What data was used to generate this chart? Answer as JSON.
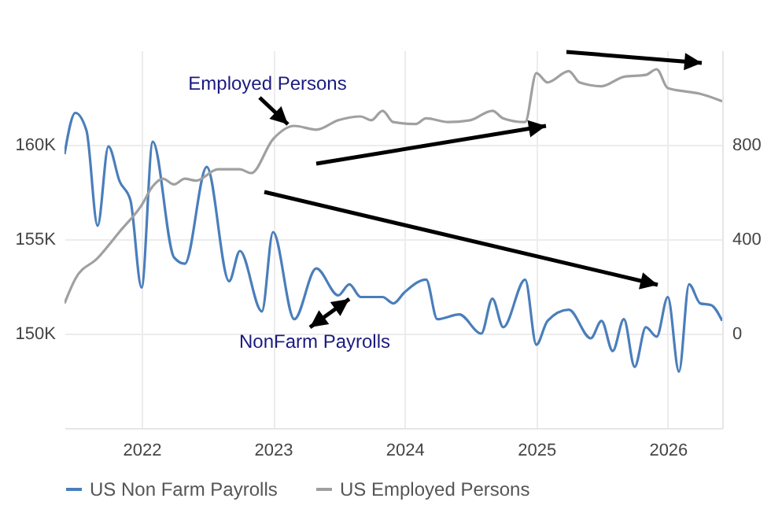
{
  "chart_data": {
    "type": "line",
    "xlim": [
      "2021-06",
      "2026-06"
    ],
    "xticks": [
      "2022",
      "2023",
      "2024",
      "2025",
      "2026"
    ],
    "ylim": [
      145000,
      165000
    ],
    "yticks": [
      {
        "value": 150000,
        "label": "150K"
      },
      {
        "value": 155000,
        "label": "155K"
      },
      {
        "value": 160000,
        "label": "160K"
      }
    ],
    "y2lim": [
      -400,
      1200
    ],
    "y2ticks": [
      0,
      400,
      800
    ],
    "grid": true,
    "legend": "bottom",
    "annotations": [
      "Employed Persons",
      "NonFarm Payrolls"
    ],
    "series": [
      {
        "name": "US Non Farm Payrolls",
        "color": "#4a7ebb",
        "axis": "y2",
        "x": [
          "2021-06",
          "2021-07",
          "2021-08",
          "2021-09",
          "2021-10",
          "2021-11",
          "2021-12",
          "2022-01",
          "2022-02",
          "2022-04",
          "2022-05",
          "2022-07",
          "2022-09",
          "2022-10",
          "2022-12",
          "2023-01",
          "2023-03",
          "2023-05",
          "2023-07",
          "2023-08",
          "2023-09",
          "2023-11",
          "2023-12",
          "2024-01",
          "2024-03",
          "2024-04",
          "2024-06",
          "2024-08",
          "2024-09",
          "2024-10",
          "2024-12",
          "2025-01",
          "2025-02",
          "2025-04",
          "2025-06",
          "2025-07",
          "2025-08",
          "2025-09",
          "2025-10",
          "2025-11",
          "2025-12",
          "2026-01",
          "2026-02",
          "2026-03",
          "2026-04",
          "2026-05",
          "2026-06"
        ],
        "values": [
          760,
          935,
          860,
          457,
          793,
          645,
          565,
          195,
          813,
          323,
          296,
          706,
          222,
          350,
          94,
          430,
          61,
          276,
          162,
          209,
          155,
          155,
          128,
          175,
          229,
          61,
          81,
          0,
          148,
          27,
          229,
          -47,
          54,
          101,
          -20,
          54,
          -74,
          61,
          -141,
          27,
          -13,
          155,
          -161,
          209,
          128,
          121,
          54
        ]
      },
      {
        "name": "US Employed Persons",
        "color": "#a0a0a0",
        "x": [
          "2021-06",
          "2021-07",
          "2021-09",
          "2021-11",
          "2022-01",
          "2022-02",
          "2022-03",
          "2022-04",
          "2022-05",
          "2022-06",
          "2022-08",
          "2022-10",
          "2022-11",
          "2023-01",
          "2023-03",
          "2023-05",
          "2023-07",
          "2023-09",
          "2023-10",
          "2023-11",
          "2023-12",
          "2024-02",
          "2024-03",
          "2024-05",
          "2024-07",
          "2024-09",
          "2024-10",
          "2024-12",
          "2025-01",
          "2025-02",
          "2025-04",
          "2025-05",
          "2025-07",
          "2025-09",
          "2025-11",
          "2025-12",
          "2026-01",
          "2026-03",
          "2026-04",
          "2026-06"
        ],
        "values": [
          151600,
          152900,
          154000,
          155400,
          156800,
          157800,
          158200,
          157900,
          158200,
          158100,
          158700,
          158700,
          158500,
          160300,
          161000,
          160800,
          161300,
          161500,
          161300,
          161800,
          161200,
          161100,
          161400,
          161200,
          161300,
          161800,
          161400,
          161200,
          163800,
          163300,
          163900,
          163300,
          163100,
          163600,
          163700,
          164000,
          163000,
          162800,
          162700,
          162300
        ]
      }
    ]
  }
}
